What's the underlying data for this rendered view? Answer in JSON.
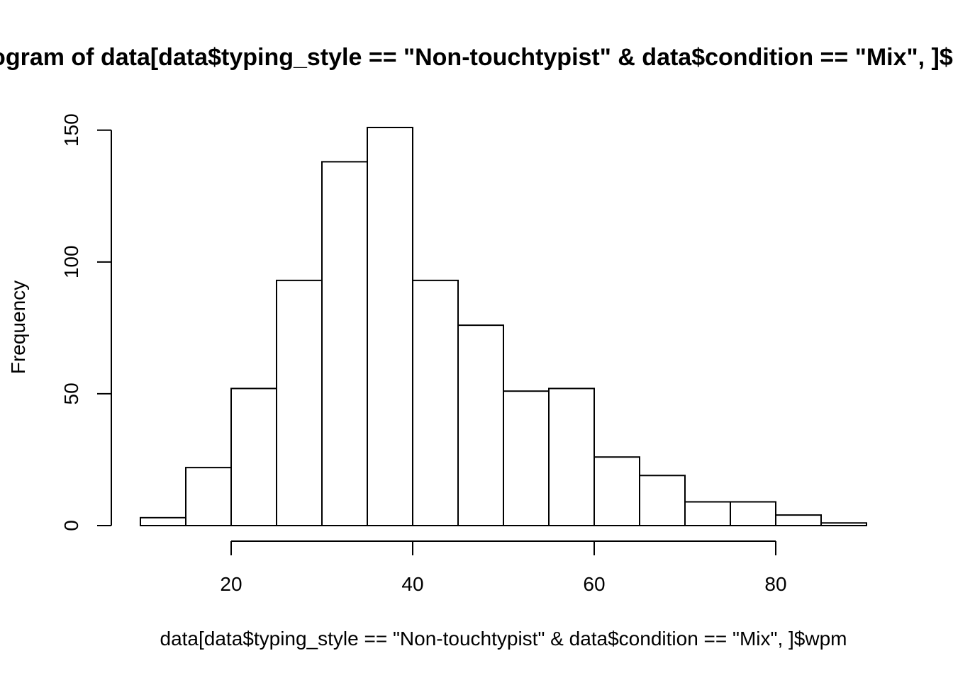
{
  "chart_data": {
    "type": "bar",
    "title": "Histogram of data[data$typing_style == \"Non-touchtypist\" & data$condition == \"Mix\", ]$wpm",
    "xlabel": "data[data$typing_style == \"Non-touchtypist\" & data$condition == \"Mix\", ]$wpm",
    "ylabel": "Frequency",
    "bin_edges": [
      10,
      15,
      20,
      25,
      30,
      35,
      40,
      45,
      50,
      55,
      60,
      65,
      70,
      75,
      80,
      85,
      90
    ],
    "values": [
      3,
      22,
      52,
      93,
      138,
      151,
      93,
      76,
      51,
      52,
      26,
      19,
      9,
      9,
      4,
      1
    ],
    "xlim": [
      10,
      90
    ],
    "ylim": [
      0,
      151
    ],
    "x_ticks": [
      20,
      40,
      60,
      80
    ],
    "x_tick_labels": [
      "20",
      "40",
      "60",
      "80"
    ],
    "y_ticks": [
      0,
      50,
      100,
      150
    ],
    "y_tick_labels": [
      "0",
      "50",
      "100",
      "150"
    ],
    "grid": false,
    "bar_fill": "#ffffff",
    "bar_stroke": "#000000"
  }
}
